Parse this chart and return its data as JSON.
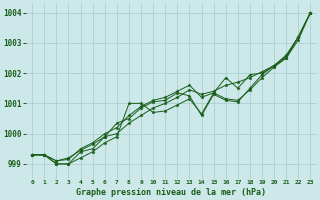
{
  "title": "Graphe pression niveau de la mer (hPa)",
  "background_color": "#cce8e8",
  "grid_color": "#aacfcf",
  "line_color": "#1a5e1a",
  "xlim": [
    -0.5,
    23.5
  ],
  "ylim": [
    998.5,
    1004.3
  ],
  "yticks": [
    999,
    1000,
    1001,
    1002,
    1003,
    1004
  ],
  "xtick_labels": [
    "0",
    "1",
    "2",
    "3",
    "4",
    "5",
    "6",
    "7",
    "8",
    "9",
    "10",
    "11",
    "12",
    "13",
    "14",
    "15",
    "16",
    "17",
    "18",
    "19",
    "20",
    "21",
    "22",
    "23"
  ],
  "series": [
    [
      999.3,
      999.3,
      999.0,
      999.0,
      999.2,
      999.4,
      999.7,
      999.9,
      1001.0,
      1001.0,
      1000.7,
      1000.75,
      1000.95,
      1001.15,
      1000.65,
      1001.35,
      1001.15,
      1001.1,
      1001.45,
      1001.85,
      1002.2,
      1002.5,
      1003.2,
      1004.0
    ],
    [
      999.3,
      999.3,
      999.1,
      999.2,
      999.45,
      999.65,
      999.9,
      1000.35,
      1000.5,
      1000.85,
      1001.05,
      1001.1,
      1001.35,
      1001.25,
      1000.6,
      1001.3,
      1001.1,
      1001.05,
      1001.5,
      1001.95,
      1002.25,
      1002.55,
      1003.2,
      1004.0
    ],
    [
      999.3,
      999.3,
      999.0,
      999.0,
      999.4,
      999.5,
      999.9,
      1000.0,
      1000.35,
      1000.6,
      1000.85,
      1001.0,
      1001.2,
      1001.45,
      1001.3,
      1001.4,
      1001.6,
      1001.7,
      1001.85,
      1002.05,
      1002.25,
      1002.5,
      1003.1,
      1004.0
    ],
    [
      999.3,
      999.3,
      999.1,
      999.15,
      999.5,
      999.7,
      1000.0,
      1000.2,
      1000.6,
      1000.9,
      1001.1,
      1001.2,
      1001.4,
      1001.6,
      1001.2,
      1001.35,
      1001.85,
      1001.5,
      1001.95,
      1002.0,
      1002.25,
      1002.6,
      1003.2,
      1004.0
    ]
  ]
}
